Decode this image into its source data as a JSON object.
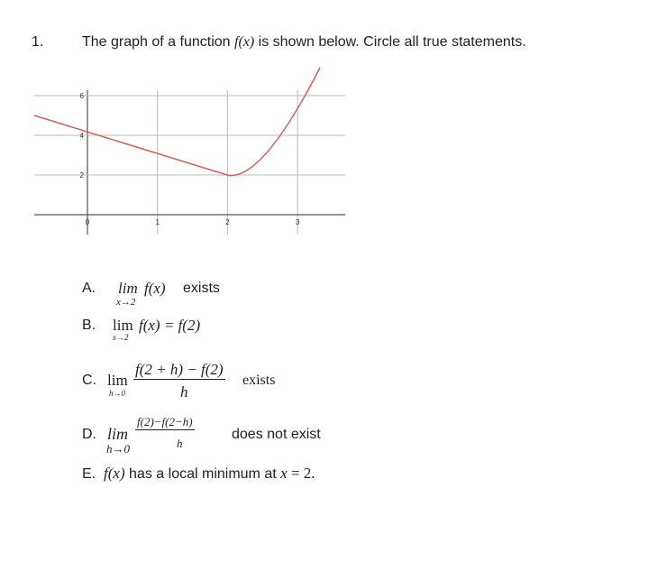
{
  "question": {
    "number": "1.",
    "text": [
      "The graph of a function ",
      "f(x)",
      " is shown below. Circle all true statements."
    ]
  },
  "graph": {
    "xticks": [
      0,
      1,
      2,
      3
    ],
    "yticks": [
      2,
      4,
      6
    ]
  },
  "options": [
    {
      "letter": "A.",
      "lim": "lim",
      "sub": "x→2",
      "expr": "f(x)",
      "tail": "exists"
    },
    {
      "letter": "B.",
      "lim": "lim",
      "sub": "x→2",
      "expr": "f(x) = f(2)"
    },
    {
      "letter": "C.",
      "lim": "lim",
      "sub": "h→0",
      "num": "f(2 + h) − f(2)",
      "den": "h",
      "tail": "exists"
    },
    {
      "letter": "D.",
      "lim": "lim",
      "sub": "h→0",
      "num": "f(2)−f(2−h)",
      "den": "h",
      "tail": "does not exist"
    },
    {
      "letter": "E.",
      "expr": "f(x)",
      "text": " has a local minimum at ",
      "var": "x",
      "end": " = 2."
    }
  ]
}
